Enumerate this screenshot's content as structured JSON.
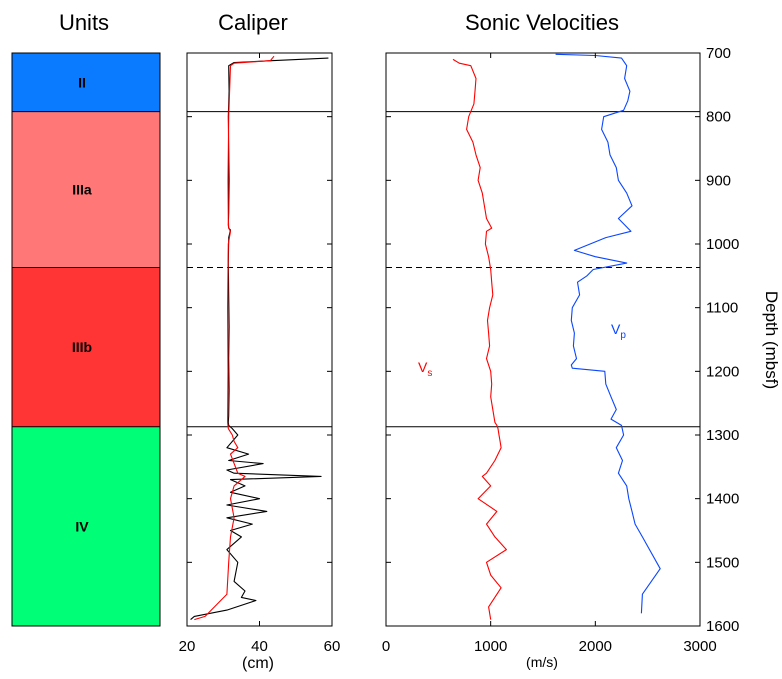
{
  "chart_data": [
    {
      "type": "column",
      "title": "Units",
      "ylim": [
        700,
        1600
      ],
      "units": [
        {
          "name": "II",
          "top": 700,
          "bottom": 792,
          "color": "#0a7aff"
        },
        {
          "name": "IIIa",
          "top": 792,
          "bottom": 1037,
          "color": "#ff7777"
        },
        {
          "name": "IIIb",
          "top": 1037,
          "bottom": 1287,
          "color": "#ff3535"
        },
        {
          "name": "IV",
          "top": 1287,
          "bottom": 1600,
          "color": "#00ff77"
        }
      ]
    },
    {
      "type": "line",
      "title": "Caliper",
      "xlabel": "(cm)",
      "xlim": [
        20,
        60
      ],
      "xticks": [
        "20",
        "40",
        "60"
      ],
      "ylim": [
        700,
        1600
      ],
      "series": [
        {
          "color": "#000000",
          "x": [
            59,
            44,
            33,
            31.5,
            31.6,
            31.4,
            31.5,
            31.6,
            31.5,
            31.4,
            31.5,
            32,
            31.5,
            31.4,
            31.5,
            31.6,
            31.5,
            31.6,
            31.5,
            31.4,
            31.5,
            32.5,
            34,
            31,
            37,
            31.5,
            41,
            31,
            33,
            57,
            32,
            36,
            32,
            40,
            31,
            42,
            31,
            38,
            32,
            35,
            31,
            34,
            33,
            36,
            35,
            39,
            31,
            22,
            21
          ],
          "y": [
            708,
            712,
            715,
            720,
            760,
            800,
            850,
            900,
            950,
            970,
            975,
            978,
            990,
            1030,
            1080,
            1130,
            1180,
            1230,
            1270,
            1280,
            1285,
            1290,
            1300,
            1320,
            1330,
            1340,
            1345,
            1355,
            1360,
            1365,
            1370,
            1380,
            1390,
            1400,
            1410,
            1420,
            1430,
            1440,
            1450,
            1460,
            1480,
            1500,
            1530,
            1545,
            1555,
            1560,
            1575,
            1585,
            1590
          ]
        },
        {
          "color": "#ff0000",
          "x": [
            44,
            43,
            33,
            32,
            31.5,
            31.3,
            31.4,
            31.5,
            32,
            31.4,
            31.2,
            31.3,
            31.2,
            31.4,
            32.5,
            33,
            34,
            32,
            34,
            36,
            33,
            32,
            33,
            32,
            31.5,
            31,
            25,
            22
          ],
          "y": [
            705,
            712,
            716,
            720,
            800,
            900,
            960,
            975,
            980,
            1000,
            1100,
            1200,
            1280,
            1290,
            1300,
            1310,
            1320,
            1330,
            1360,
            1365,
            1380,
            1400,
            1430,
            1460,
            1500,
            1550,
            1585,
            1590
          ]
        }
      ]
    },
    {
      "type": "line",
      "title": "Sonic Velocities",
      "xlabel": "(m/s)",
      "ylabel": "Depth (mbsf)",
      "xlim": [
        0,
        3000
      ],
      "xticks": [
        "0",
        "1000",
        "2000",
        "3000"
      ],
      "ylim": [
        700,
        1600
      ],
      "yticks": [
        "700",
        "800",
        "900",
        "1000",
        "1100",
        "1200",
        "1300",
        "1400",
        "1500",
        "1600"
      ],
      "series": [
        {
          "name": "V",
          "subscript": "s",
          "color": "#ff0000",
          "x": [
            640,
            700,
            810,
            860,
            850,
            840,
            790,
            770,
            830,
            860,
            900,
            880,
            920,
            940,
            960,
            1010,
            960,
            950,
            980,
            1000,
            1010,
            1020,
            990,
            970,
            980,
            990,
            960,
            1000,
            1010,
            1000,
            1020,
            1040,
            1060,
            1070,
            1080,
            1090,
            1100,
            1040,
            960,
            920,
            1000,
            880,
            1060,
            960,
            1040,
            1150,
            960,
            1000,
            1100,
            980,
            1000
          ],
          "y": [
            710,
            716,
            720,
            740,
            760,
            780,
            800,
            820,
            840,
            860,
            880,
            900,
            920,
            940,
            960,
            975,
            980,
            1000,
            1020,
            1040,
            1060,
            1080,
            1100,
            1120,
            1140,
            1160,
            1180,
            1200,
            1220,
            1240,
            1260,
            1280,
            1285,
            1290,
            1300,
            1310,
            1320,
            1340,
            1360,
            1365,
            1380,
            1400,
            1420,
            1440,
            1460,
            1480,
            1500,
            1520,
            1540,
            1570,
            1590
          ]
        },
        {
          "name": "V",
          "subscript": "p",
          "color": "#0a46ff",
          "x": [
            1620,
            2000,
            2250,
            2300,
            2280,
            2330,
            2310,
            2270,
            2080,
            2060,
            2120,
            2140,
            2200,
            2220,
            2300,
            2350,
            2220,
            2340,
            2100,
            1800,
            2000,
            2300,
            1980,
            1920,
            1830,
            1850,
            1780,
            1770,
            1800,
            1790,
            1820,
            1770,
            1780,
            2090,
            2100,
            2150,
            2200,
            2150,
            2250,
            2270,
            2200,
            2260,
            2220,
            2300,
            2320,
            2350,
            2380,
            2450,
            2620,
            2450,
            2440
          ],
          "y": [
            702,
            704,
            708,
            720,
            740,
            760,
            775,
            790,
            800,
            820,
            840,
            860,
            880,
            900,
            920,
            940,
            960,
            980,
            990,
            1010,
            1020,
            1030,
            1040,
            1050,
            1060,
            1080,
            1100,
            1120,
            1140,
            1160,
            1180,
            1190,
            1195,
            1200,
            1220,
            1240,
            1260,
            1275,
            1285,
            1300,
            1320,
            1340,
            1360,
            1380,
            1400,
            1420,
            1440,
            1460,
            1510,
            1550,
            1580
          ]
        }
      ]
    }
  ],
  "boundaries": {
    "solid": [
      792,
      1287
    ],
    "dashed": [
      1037
    ]
  }
}
